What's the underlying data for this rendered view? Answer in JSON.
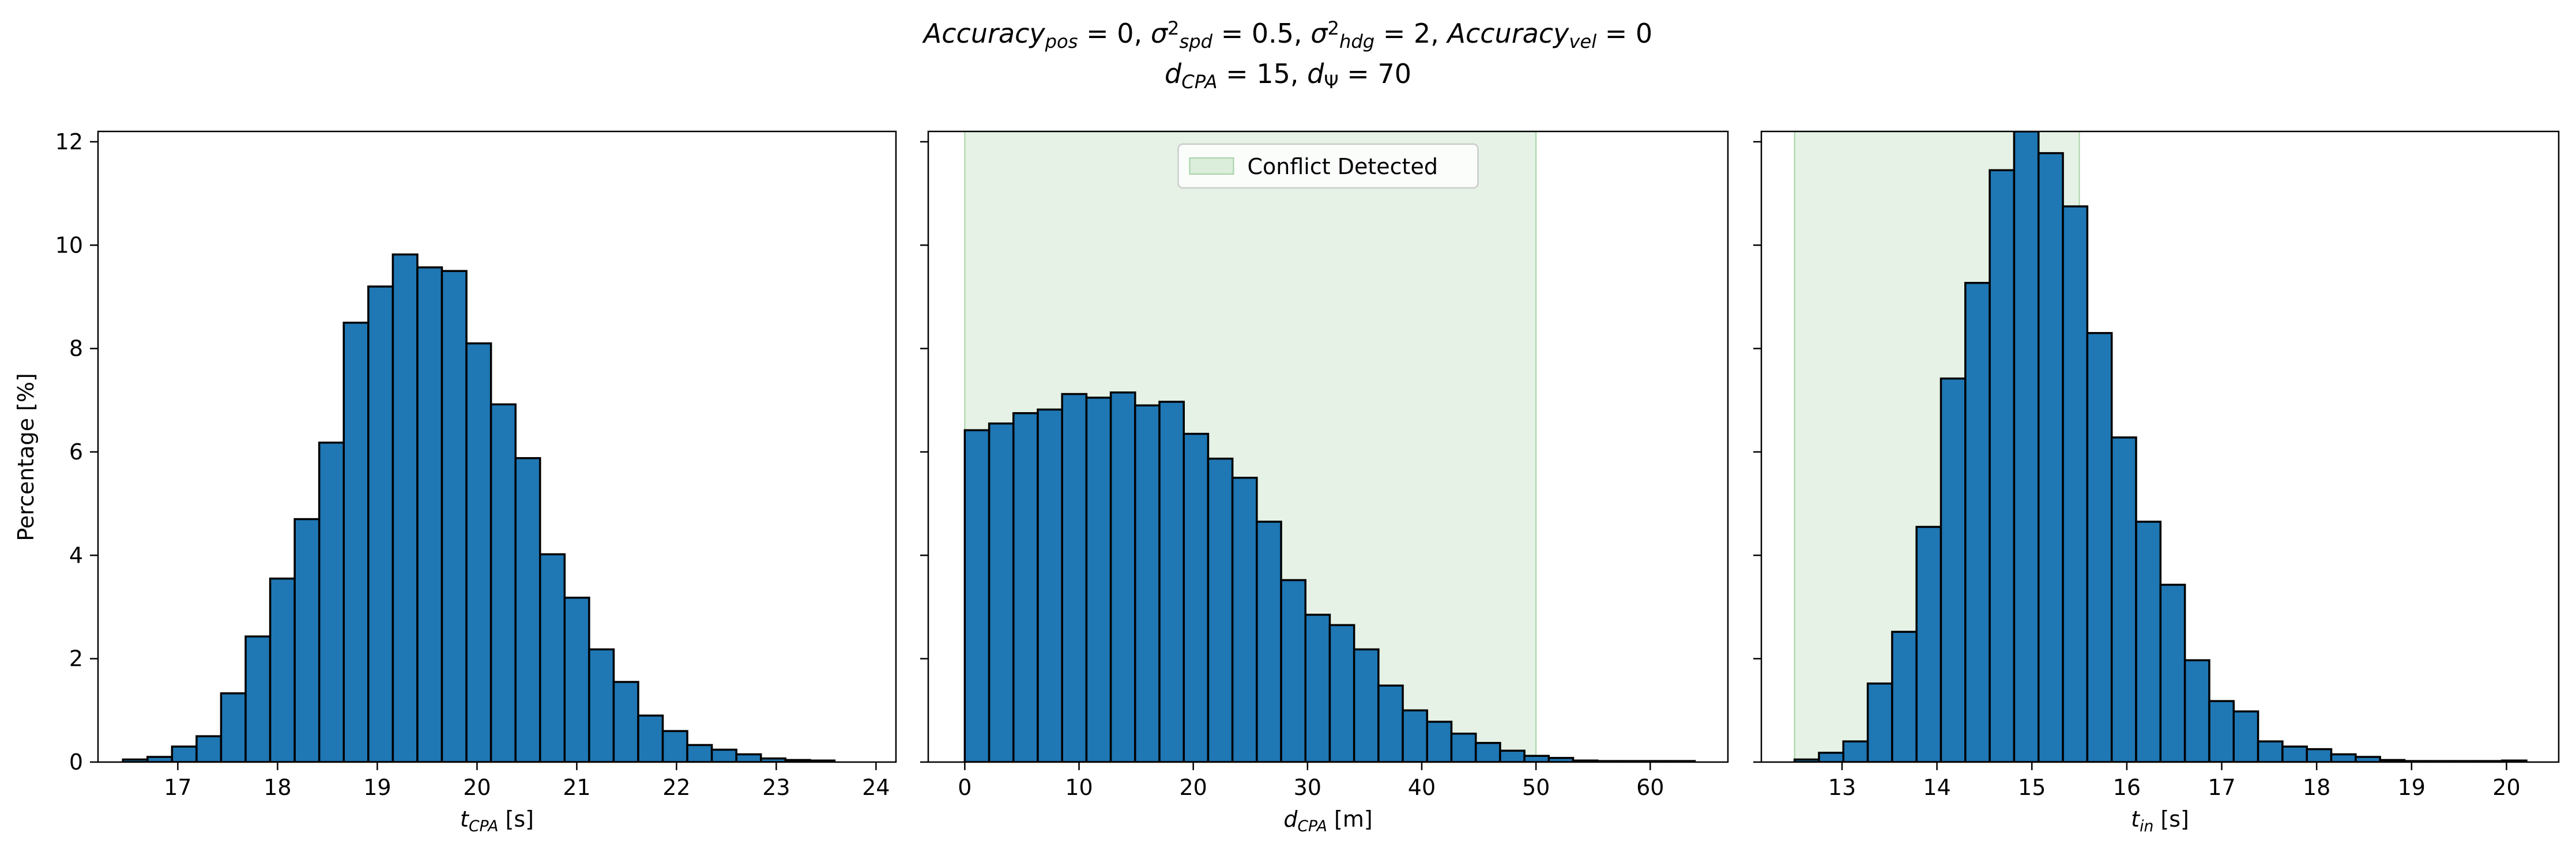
{
  "figure": {
    "title_line1": {
      "parts": [
        {
          "t": "Accuracy",
          "i": true
        },
        {
          "t": "pos",
          "i": true,
          "sub": true
        },
        {
          "t": " = 0, "
        },
        {
          "t": "σ",
          "i": true
        },
        {
          "t": "2",
          "sup": true
        },
        {
          "t": "spd",
          "i": true,
          "sub": true
        },
        {
          "t": " = 0.5, "
        },
        {
          "t": "σ",
          "i": true
        },
        {
          "t": "2",
          "sup": true
        },
        {
          "t": "hdg",
          "i": true,
          "sub": true
        },
        {
          "t": " = 2, "
        },
        {
          "t": "Accuracy",
          "i": true
        },
        {
          "t": "vel",
          "i": true,
          "sub": true
        },
        {
          "t": " = 0"
        }
      ]
    },
    "title_line2": {
      "parts": [
        {
          "t": "d",
          "i": true
        },
        {
          "t": "CPA",
          "i": true,
          "sub": true
        },
        {
          "t": " = 15, "
        },
        {
          "t": "d",
          "i": true
        },
        {
          "t": "Ψ",
          "sub": true
        },
        {
          "t": " = 70"
        }
      ]
    },
    "ylabel": "Percentage [%]",
    "legend_label": "Conflict Detected",
    "colors": {
      "bar_fill": "#1f77b4",
      "bar_edge": "#000000",
      "shade": "#c6e2c6",
      "shade_edge": "#a6d3a6"
    }
  },
  "chart_data": [
    {
      "type": "bar",
      "xlabel": {
        "parts": [
          {
            "t": "t",
            "i": true
          },
          {
            "t": "CPA",
            "i": true,
            "sub": true
          },
          {
            "t": " [s]"
          }
        ]
      },
      "xlim": [
        16.2,
        24.2
      ],
      "ylim": [
        0,
        12.2
      ],
      "xticks": [
        17,
        18,
        19,
        20,
        21,
        22,
        23,
        24
      ],
      "yticks": [
        0,
        2,
        4,
        6,
        8,
        10,
        12
      ],
      "bin_start": 16.45,
      "bin_width": 0.246,
      "values": [
        0.05,
        0.1,
        0.3,
        0.5,
        1.33,
        2.43,
        3.55,
        4.7,
        6.18,
        8.5,
        9.2,
        9.82,
        9.57,
        9.5,
        8.1,
        6.92,
        5.88,
        4.02,
        3.18,
        2.18,
        1.55,
        0.9,
        0.6,
        0.33,
        0.24,
        0.15,
        0.07,
        0.04,
        0.03
      ],
      "shade": null
    },
    {
      "type": "bar",
      "xlabel": {
        "parts": [
          {
            "t": "d",
            "i": true
          },
          {
            "t": "CPA",
            "i": true,
            "sub": true
          },
          {
            "t": " [m]"
          }
        ]
      },
      "xlim": [
        -3.2,
        66.8
      ],
      "ylim": [
        0,
        12.2
      ],
      "xticks": [
        0,
        10,
        20,
        30,
        40,
        50,
        60
      ],
      "yticks": [
        0,
        2,
        4,
        6,
        8,
        10,
        12
      ],
      "bin_start": 0,
      "bin_width": 2.13,
      "values": [
        6.42,
        6.55,
        6.75,
        6.82,
        7.12,
        7.05,
        7.15,
        6.9,
        6.97,
        6.35,
        5.87,
        5.5,
        4.65,
        3.52,
        2.85,
        2.65,
        2.18,
        1.48,
        1.0,
        0.78,
        0.55,
        0.37,
        0.22,
        0.12,
        0.08,
        0.03,
        0.02,
        0.02,
        0.02,
        0.02
      ],
      "shade": [
        0,
        50
      ],
      "legend": "upper center"
    },
    {
      "type": "bar",
      "xlabel": {
        "parts": [
          {
            "t": "t",
            "i": true
          },
          {
            "t": "in",
            "i": true,
            "sub": true
          },
          {
            "t": " [s]"
          }
        ]
      },
      "xlim": [
        12.15,
        20.55
      ],
      "ylim": [
        0,
        12.2
      ],
      "xticks": [
        13,
        14,
        15,
        16,
        17,
        18,
        19,
        20
      ],
      "yticks": [
        0,
        2,
        4,
        6,
        8,
        10,
        12
      ],
      "bin_start": 12.5,
      "bin_width": 0.257,
      "values": [
        0.05,
        0.18,
        0.4,
        1.52,
        2.52,
        4.55,
        7.42,
        9.27,
        11.45,
        12.2,
        11.78,
        10.75,
        8.3,
        6.28,
        4.65,
        3.43,
        1.97,
        1.18,
        0.98,
        0.4,
        0.3,
        0.25,
        0.15,
        0.1,
        0.04,
        0.02,
        0.02,
        0.02,
        0.02,
        0.03
      ],
      "shade": [
        12.5,
        15.5
      ]
    }
  ]
}
